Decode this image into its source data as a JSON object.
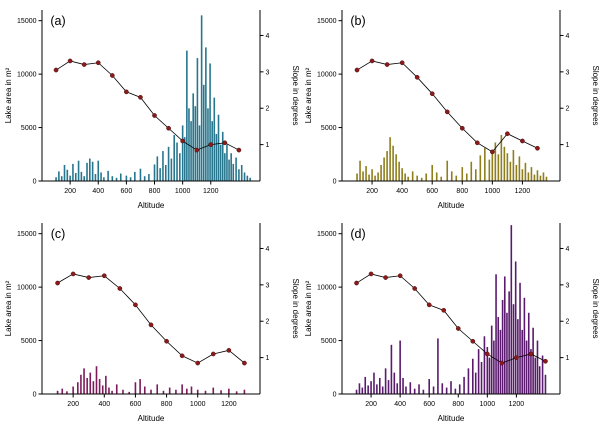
{
  "style": {
    "axis_color": "#000000",
    "line_color": "#000000",
    "point_color": "#8b1a1a",
    "point_stroke": "#4d0d0d",
    "background": "#ffffff"
  },
  "chart_data": [
    {
      "type": "bar",
      "panel_label": "(a)",
      "bar_color": "#27768e",
      "xlabel": "Altitude",
      "ylabel_left": "Lake area in m²",
      "ylabel_right": "Slope in degrees",
      "xlim": [
        0,
        1550
      ],
      "ylim_left": [
        0,
        16000
      ],
      "ylim_right": [
        0,
        4.7
      ],
      "xticks": [
        200,
        400,
        600,
        800,
        1000,
        1200
      ],
      "yticks_left": [
        0,
        5000,
        10000,
        15000
      ],
      "yticks_right": [
        1,
        2,
        3,
        4
      ],
      "bars": [
        [
          100,
          350
        ],
        [
          120,
          900
        ],
        [
          140,
          450
        ],
        [
          160,
          1500
        ],
        [
          180,
          1050
        ],
        [
          200,
          500
        ],
        [
          220,
          1600
        ],
        [
          240,
          750
        ],
        [
          260,
          1900
        ],
        [
          280,
          850
        ],
        [
          300,
          450
        ],
        [
          320,
          1700
        ],
        [
          340,
          2100
        ],
        [
          360,
          1800
        ],
        [
          380,
          650
        ],
        [
          400,
          1900
        ],
        [
          420,
          800
        ],
        [
          440,
          350
        ],
        [
          470,
          950
        ],
        [
          500,
          450
        ],
        [
          530,
          300
        ],
        [
          560,
          700
        ],
        [
          600,
          500
        ],
        [
          630,
          350
        ],
        [
          660,
          850
        ],
        [
          700,
          1150
        ],
        [
          730,
          450
        ],
        [
          760,
          650
        ],
        [
          800,
          1550
        ],
        [
          820,
          2300
        ],
        [
          840,
          1200
        ],
        [
          860,
          2800
        ],
        [
          880,
          1500
        ],
        [
          900,
          3200
        ],
        [
          920,
          2100
        ],
        [
          940,
          4300
        ],
        [
          960,
          3600
        ],
        [
          980,
          2600
        ],
        [
          1000,
          5200
        ],
        [
          1015,
          4100
        ],
        [
          1030,
          12200
        ],
        [
          1045,
          6800
        ],
        [
          1060,
          5600
        ],
        [
          1075,
          8200
        ],
        [
          1090,
          7000
        ],
        [
          1105,
          11500
        ],
        [
          1120,
          5200
        ],
        [
          1135,
          15500
        ],
        [
          1150,
          9000
        ],
        [
          1165,
          12500
        ],
        [
          1180,
          6800
        ],
        [
          1195,
          11000
        ],
        [
          1210,
          5600
        ],
        [
          1225,
          7800
        ],
        [
          1240,
          4400
        ],
        [
          1255,
          6200
        ],
        [
          1270,
          3400
        ],
        [
          1285,
          4600
        ],
        [
          1300,
          2600
        ],
        [
          1315,
          3400
        ],
        [
          1330,
          2000
        ],
        [
          1345,
          2600
        ],
        [
          1360,
          1600
        ],
        [
          1380,
          2200
        ],
        [
          1400,
          1100
        ],
        [
          1420,
          1500
        ],
        [
          1440,
          800
        ],
        [
          1460,
          500
        ],
        [
          1480,
          300
        ]
      ],
      "slope_line": {
        "x": [
          100,
          200,
          300,
          400,
          500,
          600,
          700,
          800,
          900,
          1000,
          1100,
          1200,
          1300,
          1400
        ],
        "y": [
          3.05,
          3.3,
          3.2,
          3.25,
          2.9,
          2.45,
          2.3,
          1.8,
          1.45,
          1.1,
          0.85,
          1.0,
          1.05,
          0.85
        ]
      }
    },
    {
      "type": "bar",
      "panel_label": "(b)",
      "bar_color": "#8f7e1c",
      "xlabel": "Altitude",
      "ylabel_left": "Lake area in m²",
      "ylabel_right": "Slope in degrees",
      "xlim": [
        0,
        1450
      ],
      "ylim_left": [
        0,
        16000
      ],
      "ylim_right": [
        0,
        4.7
      ],
      "xticks": [
        200,
        400,
        600,
        800,
        1000,
        1200
      ],
      "yticks_left": [
        0,
        5000,
        10000,
        15000
      ],
      "yticks_right": [
        1,
        2,
        3,
        4
      ],
      "bars": [
        [
          100,
          700
        ],
        [
          120,
          1900
        ],
        [
          140,
          900
        ],
        [
          160,
          1400
        ],
        [
          180,
          600
        ],
        [
          200,
          1100
        ],
        [
          220,
          500
        ],
        [
          240,
          800
        ],
        [
          260,
          1500
        ],
        [
          280,
          2200
        ],
        [
          300,
          2800
        ],
        [
          320,
          4100
        ],
        [
          340,
          3300
        ],
        [
          360,
          2500
        ],
        [
          380,
          1800
        ],
        [
          400,
          1200
        ],
        [
          420,
          700
        ],
        [
          440,
          400
        ],
        [
          470,
          900
        ],
        [
          500,
          500
        ],
        [
          530,
          300
        ],
        [
          560,
          700
        ],
        [
          600,
          1500
        ],
        [
          630,
          800
        ],
        [
          660,
          400
        ],
        [
          700,
          1900
        ],
        [
          730,
          900
        ],
        [
          760,
          500
        ],
        [
          800,
          1300
        ],
        [
          830,
          700
        ],
        [
          860,
          1800
        ],
        [
          890,
          1100
        ],
        [
          920,
          2400
        ],
        [
          950,
          3100
        ],
        [
          980,
          2000
        ],
        [
          1000,
          2800
        ],
        [
          1020,
          3600
        ],
        [
          1040,
          2500
        ],
        [
          1060,
          4300
        ],
        [
          1080,
          3200
        ],
        [
          1100,
          2600
        ],
        [
          1120,
          1800
        ],
        [
          1140,
          2900
        ],
        [
          1160,
          1500
        ],
        [
          1180,
          2300
        ],
        [
          1200,
          1100
        ],
        [
          1220,
          1700
        ],
        [
          1240,
          800
        ],
        [
          1260,
          1300
        ],
        [
          1280,
          600
        ],
        [
          1300,
          1000
        ],
        [
          1320,
          500
        ],
        [
          1340,
          800
        ],
        [
          1360,
          400
        ]
      ],
      "slope_line": {
        "x": [
          100,
          200,
          300,
          400,
          500,
          600,
          700,
          800,
          900,
          1000,
          1100,
          1200,
          1300
        ],
        "y": [
          3.05,
          3.3,
          3.2,
          3.25,
          2.85,
          2.4,
          1.9,
          1.45,
          1.05,
          0.8,
          1.3,
          1.1,
          0.9
        ]
      }
    },
    {
      "type": "bar",
      "panel_label": "(c)",
      "bar_color": "#7d1a5c",
      "xlabel": "Altitude",
      "ylabel_left": "Lake area in m²",
      "ylabel_right": "Slope in degrees",
      "xlim": [
        0,
        1400
      ],
      "ylim_left": [
        0,
        16000
      ],
      "ylim_right": [
        0,
        4.7
      ],
      "xticks": [
        200,
        400,
        600,
        800,
        1000,
        1200
      ],
      "yticks_left": [
        0,
        5000,
        10000,
        15000
      ],
      "yticks_right": [
        1,
        2,
        3,
        4
      ],
      "bars": [
        [
          100,
          300
        ],
        [
          130,
          500
        ],
        [
          160,
          250
        ],
        [
          200,
          700
        ],
        [
          230,
          1100
        ],
        [
          250,
          1800
        ],
        [
          270,
          2400
        ],
        [
          290,
          1500
        ],
        [
          310,
          2000
        ],
        [
          330,
          1200
        ],
        [
          350,
          2600
        ],
        [
          370,
          1400
        ],
        [
          390,
          800
        ],
        [
          410,
          1700
        ],
        [
          430,
          600
        ],
        [
          450,
          300
        ],
        [
          480,
          900
        ],
        [
          520,
          400
        ],
        [
          560,
          200
        ],
        [
          600,
          1100
        ],
        [
          630,
          1400
        ],
        [
          660,
          700
        ],
        [
          700,
          400
        ],
        [
          740,
          900
        ],
        [
          780,
          300
        ],
        [
          820,
          600
        ],
        [
          860,
          400
        ],
        [
          900,
          900
        ],
        [
          930,
          500
        ],
        [
          960,
          700
        ],
        [
          1000,
          400
        ],
        [
          1050,
          300
        ],
        [
          1100,
          600
        ],
        [
          1150,
          350
        ],
        [
          1200,
          500
        ],
        [
          1250,
          250
        ],
        [
          1300,
          400
        ]
      ],
      "slope_line": {
        "x": [
          100,
          200,
          300,
          400,
          500,
          600,
          700,
          800,
          900,
          1000,
          1100,
          1200,
          1300
        ],
        "y": [
          3.05,
          3.3,
          3.2,
          3.25,
          2.9,
          2.45,
          1.9,
          1.45,
          1.05,
          0.85,
          1.1,
          1.2,
          0.85
        ]
      }
    },
    {
      "type": "bar",
      "panel_label": "(d)",
      "bar_color": "#5a1a6e",
      "xlabel": "Altitude",
      "ylabel_left": "Lake area in m²",
      "ylabel_right": "Slope in degrees",
      "xlim": [
        0,
        1500
      ],
      "ylim_left": [
        0,
        16000
      ],
      "ylim_right": [
        0,
        4.7
      ],
      "xticks": [
        200,
        400,
        600,
        800,
        1000,
        1200
      ],
      "yticks_left": [
        0,
        5000,
        10000,
        15000
      ],
      "yticks_right": [
        1,
        2,
        3,
        4
      ],
      "bars": [
        [
          100,
          400
        ],
        [
          120,
          1000
        ],
        [
          140,
          600
        ],
        [
          160,
          1600
        ],
        [
          180,
          800
        ],
        [
          200,
          1200
        ],
        [
          220,
          2000
        ],
        [
          240,
          900
        ],
        [
          260,
          1500
        ],
        [
          280,
          700
        ],
        [
          300,
          2400
        ],
        [
          320,
          1300
        ],
        [
          340,
          4600
        ],
        [
          360,
          2000
        ],
        [
          380,
          1000
        ],
        [
          400,
          5000
        ],
        [
          420,
          1500
        ],
        [
          440,
          700
        ],
        [
          470,
          1100
        ],
        [
          500,
          500
        ],
        [
          530,
          900
        ],
        [
          560,
          400
        ],
        [
          600,
          1400
        ],
        [
          630,
          700
        ],
        [
          660,
          5200
        ],
        [
          690,
          1000
        ],
        [
          720,
          600
        ],
        [
          750,
          1200
        ],
        [
          780,
          500
        ],
        [
          810,
          900
        ],
        [
          840,
          1600
        ],
        [
          870,
          2400
        ],
        [
          900,
          3300
        ],
        [
          920,
          2000
        ],
        [
          940,
          4200
        ],
        [
          960,
          3000
        ],
        [
          980,
          5400
        ],
        [
          1000,
          4400
        ],
        [
          1015,
          3400
        ],
        [
          1030,
          6400
        ],
        [
          1045,
          5000
        ],
        [
          1060,
          11200
        ],
        [
          1075,
          7200
        ],
        [
          1090,
          6000
        ],
        [
          1105,
          8800
        ],
        [
          1120,
          11000
        ],
        [
          1135,
          7600
        ],
        [
          1150,
          9600
        ],
        [
          1165,
          15800
        ],
        [
          1180,
          8400
        ],
        [
          1195,
          12400
        ],
        [
          1210,
          7000
        ],
        [
          1225,
          10400
        ],
        [
          1240,
          6000
        ],
        [
          1255,
          9000
        ],
        [
          1270,
          5000
        ],
        [
          1285,
          7600
        ],
        [
          1300,
          4200
        ],
        [
          1315,
          6200
        ],
        [
          1330,
          3400
        ],
        [
          1345,
          5000
        ],
        [
          1360,
          2600
        ],
        [
          1380,
          3600
        ],
        [
          1400,
          1800
        ]
      ],
      "slope_line": {
        "x": [
          100,
          200,
          300,
          400,
          500,
          600,
          700,
          800,
          900,
          1000,
          1100,
          1200,
          1300,
          1400
        ],
        "y": [
          3.05,
          3.3,
          3.2,
          3.25,
          2.9,
          2.45,
          2.3,
          1.8,
          1.45,
          1.1,
          0.85,
          1.0,
          1.1,
          0.9
        ]
      }
    }
  ]
}
